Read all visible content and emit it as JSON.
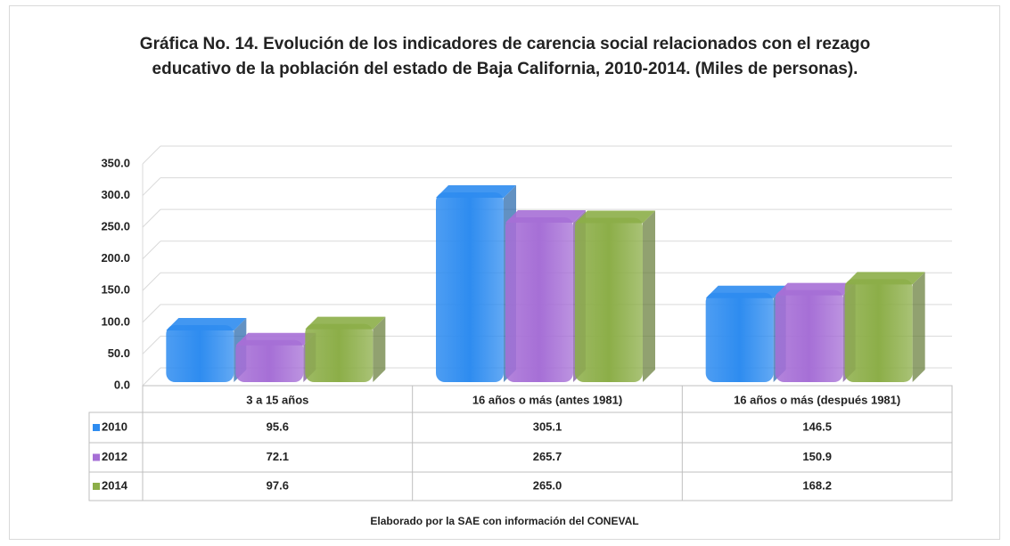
{
  "chart_data": {
    "type": "bar",
    "title": "Gráfica No. 14. Evolución de los indicadores de carencia social relacionados con el rezago educativo de la población del estado de Baja California, 2010-2014. (Miles de personas).",
    "categories": [
      "3 a 15 años",
      "16 años o más (antes 1981)",
      "16 años o más (después 1981)"
    ],
    "series": [
      {
        "name": "2010",
        "color": "#2e8cf0",
        "values": [
          95.6,
          305.1,
          146.5
        ],
        "value_labels": [
          "95.6",
          "305.1",
          "146.5"
        ]
      },
      {
        "name": "2012",
        "color": "#a66fd6",
        "values": [
          72.1,
          265.7,
          150.9
        ],
        "value_labels": [
          "72.1",
          "265.7",
          "150.9"
        ]
      },
      {
        "name": "2014",
        "color": "#8cae48",
        "values": [
          97.6,
          265.0,
          168.2
        ],
        "value_labels": [
          "97.6",
          "265.0",
          "168.2"
        ]
      }
    ],
    "ylim": [
      0,
      350
    ],
    "yticks": [
      {
        "value": 0,
        "label": "0.0"
      },
      {
        "value": 50,
        "label": "50.0"
      },
      {
        "value": 100,
        "label": "100.0"
      },
      {
        "value": 150,
        "label": "150.0"
      },
      {
        "value": 200,
        "label": "200.0"
      },
      {
        "value": 250,
        "label": "250.0"
      },
      {
        "value": 300,
        "label": "300.0"
      },
      {
        "value": 350,
        "label": "350.0"
      }
    ],
    "grid": true,
    "source": "Elaborado por la SAE con información del CONEVAL"
  }
}
